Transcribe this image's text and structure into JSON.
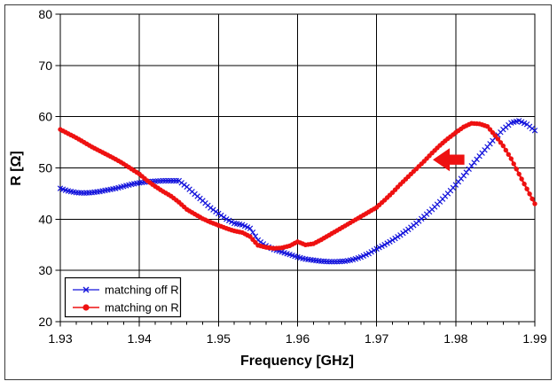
{
  "figure": {
    "xlabel": "Frequency [GHz]",
    "ylabel": "R [Ω]"
  },
  "chart_data": {
    "type": "line",
    "title": "",
    "xlabel": "Frequency [GHz]",
    "ylabel": "R [Ω]",
    "xlim": [
      1.93,
      1.99
    ],
    "ylim": [
      20,
      80
    ],
    "grid": true,
    "x_tick_step": 0.01,
    "x_minor_tick_step": 0.002,
    "y_tick_step": 10,
    "x_tick_labels": [
      "1.93",
      "1.94",
      "1.95",
      "1.96",
      "1.97",
      "1.98",
      "1.99"
    ],
    "y_tick_labels": [
      "20",
      "30",
      "40",
      "50",
      "60",
      "70",
      "80"
    ],
    "legend_position": "bottom-left-inside",
    "x": [
      1.93,
      1.931,
      1.932,
      1.933,
      1.934,
      1.935,
      1.936,
      1.937,
      1.938,
      1.939,
      1.94,
      1.941,
      1.942,
      1.943,
      1.944,
      1.945,
      1.946,
      1.947,
      1.948,
      1.949,
      1.95,
      1.951,
      1.952,
      1.953,
      1.954,
      1.955,
      1.956,
      1.957,
      1.958,
      1.959,
      1.96,
      1.961,
      1.962,
      1.963,
      1.964,
      1.965,
      1.966,
      1.967,
      1.968,
      1.969,
      1.97,
      1.971,
      1.972,
      1.973,
      1.974,
      1.975,
      1.976,
      1.977,
      1.978,
      1.979,
      1.98,
      1.981,
      1.982,
      1.983,
      1.984,
      1.985,
      1.986,
      1.987,
      1.988,
      1.989,
      1.99
    ],
    "series": [
      {
        "name": "matching off R",
        "color": "#1414dc",
        "marker": "x",
        "values": [
          46.0,
          45.5,
          45.2,
          45.1,
          45.2,
          45.4,
          45.7,
          46.0,
          46.4,
          46.8,
          47.1,
          47.3,
          47.4,
          47.5,
          47.5,
          47.5,
          46.3,
          44.9,
          43.6,
          42.2,
          41.1,
          40.0,
          39.2,
          38.9,
          38.2,
          35.9,
          34.8,
          34.1,
          33.6,
          33.1,
          32.6,
          32.2,
          32.0,
          31.8,
          31.7,
          31.7,
          31.8,
          32.1,
          32.6,
          33.3,
          34.2,
          35.0,
          35.9,
          36.9,
          38.0,
          39.2,
          40.5,
          41.9,
          43.4,
          45.0,
          46.7,
          48.5,
          50.4,
          52.3,
          54.1,
          55.9,
          57.5,
          58.8,
          59.2,
          58.5,
          57.3
        ]
      },
      {
        "name": "matching on R",
        "color": "#ee1111",
        "marker": "circle",
        "values": [
          57.5,
          56.7,
          55.9,
          55.0,
          54.1,
          53.3,
          52.5,
          51.7,
          50.8,
          49.8,
          48.8,
          47.5,
          46.4,
          45.4,
          44.5,
          43.3,
          41.9,
          41.0,
          40.1,
          39.4,
          38.8,
          38.2,
          37.7,
          37.4,
          36.6,
          34.9,
          34.5,
          34.3,
          34.4,
          34.8,
          35.6,
          35.0,
          35.2,
          36.0,
          36.9,
          37.8,
          38.7,
          39.6,
          40.5,
          41.4,
          42.3,
          43.7,
          45.2,
          46.8,
          48.3,
          49.8,
          51.3,
          52.9,
          54.4,
          55.7,
          56.9,
          58.0,
          58.7,
          58.6,
          58.1,
          56.3,
          54.3,
          51.8,
          48.8,
          45.9,
          43.0
        ]
      }
    ],
    "annotations": [
      {
        "type": "arrow",
        "direction": "left",
        "color": "#ee1111",
        "x_tip": 1.9771,
        "x_tail": 1.9811,
        "y": 51.6
      }
    ]
  }
}
